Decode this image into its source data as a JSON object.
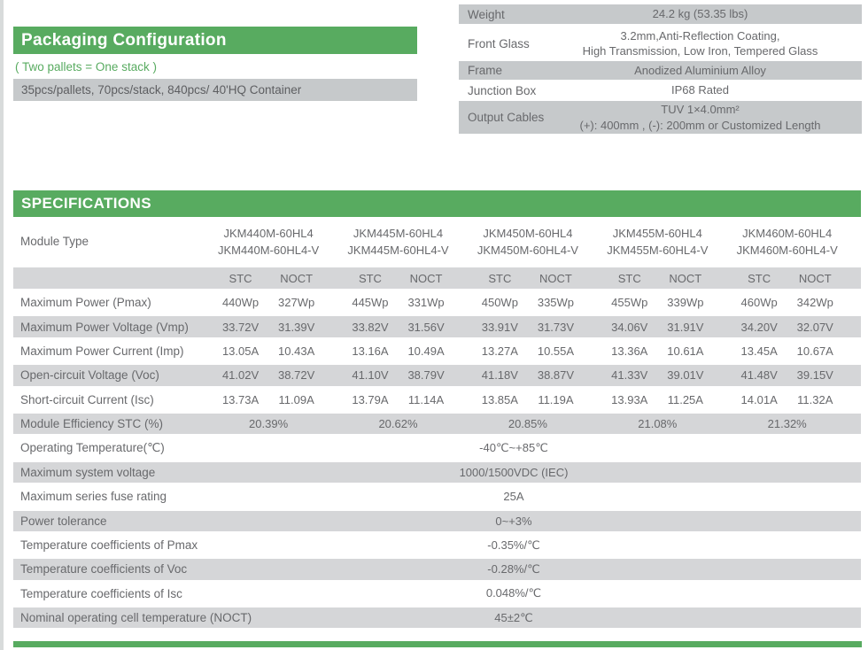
{
  "colors": {
    "green": "#58ab60",
    "gray_dark": "#c6c9cb",
    "gray_light": "#d5d6d8",
    "text": "#68696c"
  },
  "packaging": {
    "title": "Packaging Configuration",
    "note": "( Two pallets = One stack )",
    "detail": "35pcs/pallets, 70pcs/stack, 840pcs/ 40'HQ Container"
  },
  "materials": {
    "rows": [
      {
        "label": "Weight",
        "lines": [
          "24.2 kg (53.35 lbs)"
        ]
      },
      {
        "label": "Front Glass",
        "lines": [
          "3.2mm,Anti-Reflection Coating,",
          "High Transmission, Low Iron, Tempered Glass"
        ]
      },
      {
        "label": "Frame",
        "lines": [
          "Anodized Aluminium Alloy"
        ]
      },
      {
        "label": "Junction Box",
        "lines": [
          "IP68 Rated"
        ]
      },
      {
        "label": "Output Cables",
        "lines": [
          "TUV  1×4.0mm²",
          "(+): 400mm , (-): 200mm or Customized Length"
        ]
      }
    ]
  },
  "specifications": {
    "title": "SPECIFICATIONS",
    "module_type_label": "Module Type",
    "modules": [
      {
        "line1": "JKM440M-60HL4",
        "line2": "JKM440M-60HL4-V"
      },
      {
        "line1": "JKM445M-60HL4",
        "line2": "JKM445M-60HL4-V"
      },
      {
        "line1": "JKM450M-60HL4",
        "line2": "JKM450M-60HL4-V"
      },
      {
        "line1": "JKM455M-60HL4",
        "line2": "JKM455M-60HL4-V"
      },
      {
        "line1": "JKM460M-60HL4",
        "line2": "JKM460M-60HL4-V"
      }
    ],
    "condition_headers": [
      "STC",
      "NOCT"
    ],
    "electrical_rows": [
      {
        "label": "Maximum Power (Pmax)",
        "values": [
          "440Wp",
          "327Wp",
          "445Wp",
          "331Wp",
          "450Wp",
          "335Wp",
          "455Wp",
          "339Wp",
          "460Wp",
          "342Wp"
        ]
      },
      {
        "label": "Maximum Power Voltage (Vmp)",
        "values": [
          "33.72V",
          "31.39V",
          "33.82V",
          "31.56V",
          "33.91V",
          "31.73V",
          "34.06V",
          "31.91V",
          "34.20V",
          "32.07V"
        ]
      },
      {
        "label": "Maximum Power Current (Imp)",
        "values": [
          "13.05A",
          "10.43A",
          "13.16A",
          "10.49A",
          "13.27A",
          "10.55A",
          "13.36A",
          "10.61A",
          "13.45A",
          "10.67A"
        ]
      },
      {
        "label": "Open-circuit Voltage (Voc)",
        "values": [
          "41.02V",
          "38.72V",
          "41.10V",
          "38.79V",
          "41.18V",
          "38.87V",
          "41.33V",
          "39.01V",
          "41.48V",
          "39.15V"
        ]
      },
      {
        "label": "Short-circuit Current (Isc)",
        "values": [
          "13.73A",
          "11.09A",
          "13.79A",
          "11.14A",
          "13.85A",
          "11.19A",
          "13.93A",
          "11.25A",
          "14.01A",
          "11.32A"
        ]
      }
    ],
    "efficiency_row": {
      "label": "Module Efficiency STC (%)",
      "values": [
        "20.39%",
        "20.62%",
        "20.85%",
        "21.08%",
        "21.32%"
      ]
    },
    "single_rows": [
      {
        "label": "Operating Temperature(℃)",
        "value": "-40℃~+85℃"
      },
      {
        "label": "Maximum system voltage",
        "value": "1000/1500VDC (IEC)"
      },
      {
        "label": "Maximum series fuse rating",
        "value": "25A"
      },
      {
        "label": "Power tolerance",
        "value": "0~+3%"
      },
      {
        "label": "Temperature coefficients of Pmax",
        "value": "-0.35%/℃"
      },
      {
        "label": "Temperature coefficients of Voc",
        "value": "-0.28%/℃"
      },
      {
        "label": "Temperature coefficients of Isc",
        "value": "0.048%/℃"
      },
      {
        "label": "Nominal operating cell temperature  (NOCT)",
        "value": "45±2℃"
      }
    ]
  }
}
